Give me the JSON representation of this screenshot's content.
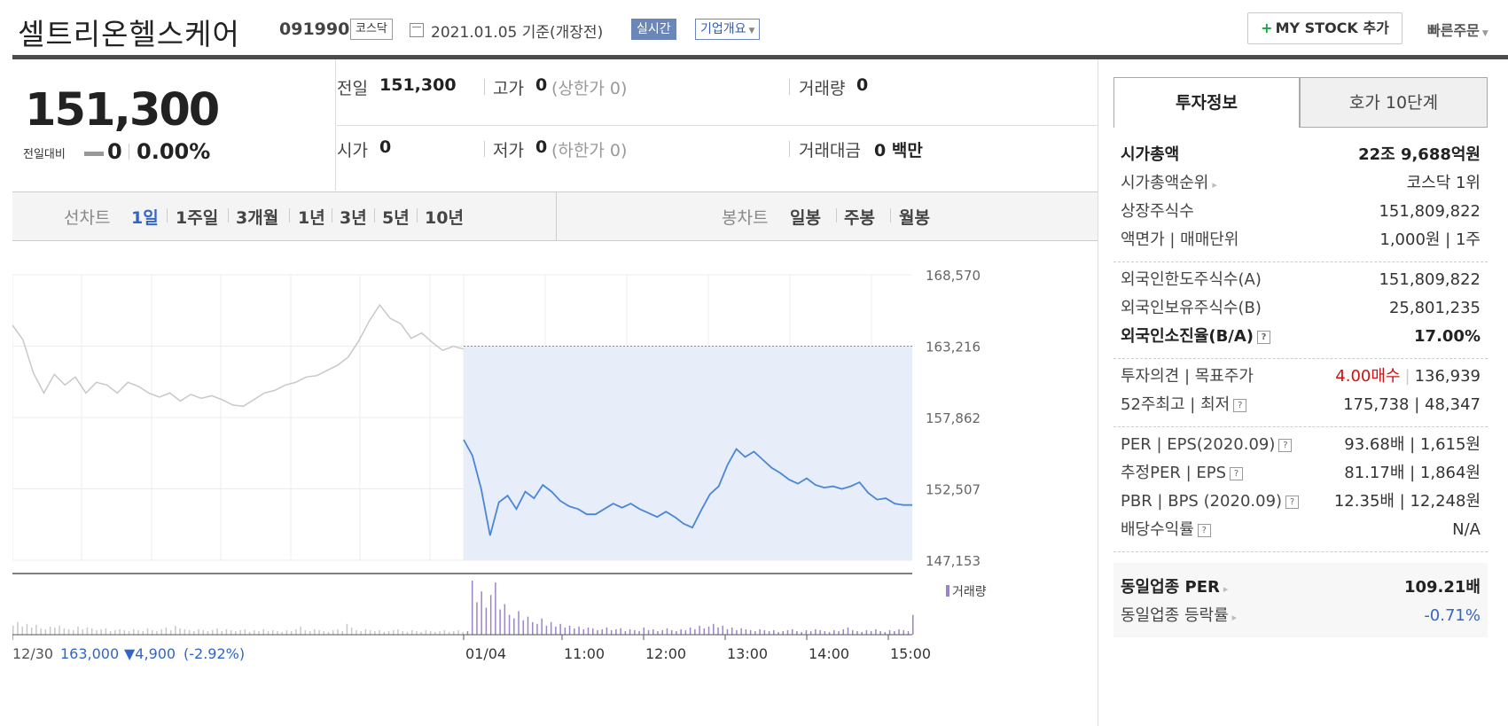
{
  "header": {
    "title": "셀트리온헬스케어",
    "code": "091990",
    "market_tag": "코스닥",
    "date": "2021.01.05  기준(개장전)",
    "realtime_label": "실시간",
    "company_label": "기업개요",
    "mystock_plus": "+",
    "mystock_label": "MY STOCK 추가",
    "quickorder_label": "빠른주문"
  },
  "price": {
    "current": "151,300",
    "diff_label": "전일대비",
    "diff_value": "0",
    "diff_rate": "0.00%"
  },
  "stats": {
    "prev_label": "전일",
    "prev_value": "151,300",
    "high_label": "고가",
    "high_value": "0",
    "high_sub": "(상한가 0)",
    "volume_label": "거래량",
    "volume_value": "0",
    "open_label": "시가",
    "open_value": "0",
    "low_label": "저가",
    "low_value": "0",
    "low_sub": "(하한가 0)",
    "amount_label": "거래대금",
    "amount_value": "0 백만"
  },
  "ranges": {
    "line_label": "선차트",
    "line_items": [
      "1일",
      "1주일",
      "3개월",
      "1년",
      "3년",
      "5년",
      "10년"
    ],
    "candle_label": "봉차트",
    "candle_items": [
      "일봉",
      "주봉",
      "월봉"
    ]
  },
  "chart_data": {
    "type": "line",
    "y_ticks": [
      "168,570",
      "163,216",
      "157,862",
      "152,507",
      "147,153"
    ],
    "ylim": [
      147153,
      168570
    ],
    "prev_close": 163216,
    "x_ticks": [
      "01/04",
      "11:00",
      "12:00",
      "13:00",
      "14:00",
      "15:00"
    ],
    "prev_day": {
      "label": "12/30",
      "close": "163,000",
      "change": "▼4,900",
      "change_rate": "(-2.92%)",
      "values": [
        164800,
        163700,
        161200,
        159700,
        161100,
        160300,
        160900,
        159700,
        160500,
        160300,
        159700,
        160500,
        160200,
        159700,
        159400,
        159700,
        159100,
        159600,
        159300,
        159500,
        159200,
        158800,
        158700,
        159200,
        159700,
        159900,
        160300,
        160500,
        160900,
        161000,
        161400,
        161800,
        162400,
        163600,
        165100,
        166300,
        165300,
        164900,
        163800,
        164200,
        163500,
        162900,
        163200,
        163000
      ]
    },
    "today": {
      "values": [
        156200,
        155000,
        152500,
        149000,
        151500,
        152000,
        151000,
        152300,
        151800,
        152800,
        152300,
        151600,
        151200,
        151000,
        150600,
        150600,
        151000,
        151400,
        151100,
        151400,
        151000,
        150700,
        150400,
        150800,
        150400,
        149900,
        149600,
        150900,
        152100,
        152700,
        154300,
        155500,
        154900,
        155300,
        154700,
        154100,
        153700,
        153200,
        152900,
        153300,
        152800,
        152600,
        152700,
        152500,
        152700,
        153000,
        152200,
        151700,
        151800,
        151400,
        151300,
        151300
      ]
    },
    "volume_label": "거래량",
    "volume": [
      10,
      14,
      9,
      12,
      8,
      11,
      7,
      6,
      9,
      8,
      10,
      7,
      6,
      5,
      9,
      6,
      8,
      7,
      5,
      6,
      7,
      4,
      5,
      6,
      5,
      4,
      6,
      5,
      4,
      7,
      5,
      4,
      6,
      8,
      5,
      10,
      7,
      6,
      5,
      4,
      6,
      5,
      4,
      5,
      7,
      4,
      6,
      5,
      4,
      5,
      6,
      3,
      5,
      4,
      6,
      4,
      5,
      4,
      3,
      5,
      4,
      6,
      9,
      5,
      4,
      6,
      5,
      4,
      3,
      5,
      6,
      4,
      12,
      8,
      5,
      4,
      6,
      5,
      4,
      5,
      3,
      4,
      5,
      6,
      4,
      3,
      5,
      4,
      3,
      5,
      4,
      3,
      4,
      5,
      3,
      4,
      5,
      3,
      4,
      60,
      36,
      48,
      30,
      44,
      58,
      28,
      34,
      22,
      18,
      26,
      16,
      20,
      14,
      12,
      18,
      10,
      14,
      9,
      12,
      8,
      10,
      7,
      9,
      6,
      8,
      7,
      5,
      6,
      8,
      5,
      6,
      7,
      4,
      6,
      5,
      4,
      8,
      5,
      6,
      4,
      5,
      7,
      5,
      4,
      6,
      5,
      8,
      6,
      10,
      7,
      9,
      12,
      8,
      10,
      6,
      8,
      5,
      7,
      6,
      5,
      4,
      6,
      5,
      4,
      5,
      3,
      4,
      5,
      6,
      4,
      3,
      5,
      4,
      6,
      5,
      4,
      3,
      5,
      4,
      6,
      8,
      5,
      4,
      3,
      5,
      4,
      6,
      4,
      3,
      5,
      4,
      6,
      5,
      4,
      22
    ]
  },
  "side": {
    "tab_invest": "투자정보",
    "tab_hoga": "호가 10단계",
    "sections": [
      [
        {
          "label": "시가총액",
          "value": "22조 9,688억원",
          "bold": true
        },
        {
          "label": "시가총액순위",
          "value": "코스닥 1위",
          "arrow": true
        },
        {
          "label": "상장주식수",
          "value": "151,809,822"
        },
        {
          "label": "액면가 | 매매단위",
          "value": "1,000원 | 1주"
        }
      ],
      [
        {
          "label": "외국인한도주식수(A)",
          "value": "151,809,822"
        },
        {
          "label": "외국인보유주식수(B)",
          "value": "25,801,235"
        },
        {
          "label": "외국인소진율(B/A)",
          "value": "17.00%",
          "bold": true,
          "help": true
        }
      ],
      [
        {
          "label": "투자의견 | 목표주가",
          "value_red": "4.00매수",
          "value": "136,939"
        },
        {
          "label": "52주최고 | 최저",
          "value": "175,738 | 48,347",
          "help": true
        }
      ],
      [
        {
          "label": "PER | EPS(2020.09)",
          "value": "93.68배 | 1,615원",
          "help": true
        },
        {
          "label": "추정PER | EPS",
          "value": "81.17배 | 1,864원",
          "help": true
        },
        {
          "label": "PBR | BPS (2020.09)",
          "value": "12.35배 | 12,248원",
          "help": true
        },
        {
          "label": "배당수익률",
          "value": "N/A",
          "help": true
        }
      ]
    ],
    "industry": [
      {
        "label": "동일업종 PER",
        "value": "109.21배",
        "bold": true
      },
      {
        "label": "동일업종 등락률",
        "value": "-0.71%",
        "blue": true
      }
    ],
    "help_glyph": "?",
    "arrow_glyph": "▸"
  },
  "colors": {
    "accent": "#3365c8",
    "line": "#4a86d8",
    "fill": "#e7eef9",
    "prev_line": "#c8c8c8",
    "volume": "#9b84c8",
    "up": "#d01111"
  }
}
